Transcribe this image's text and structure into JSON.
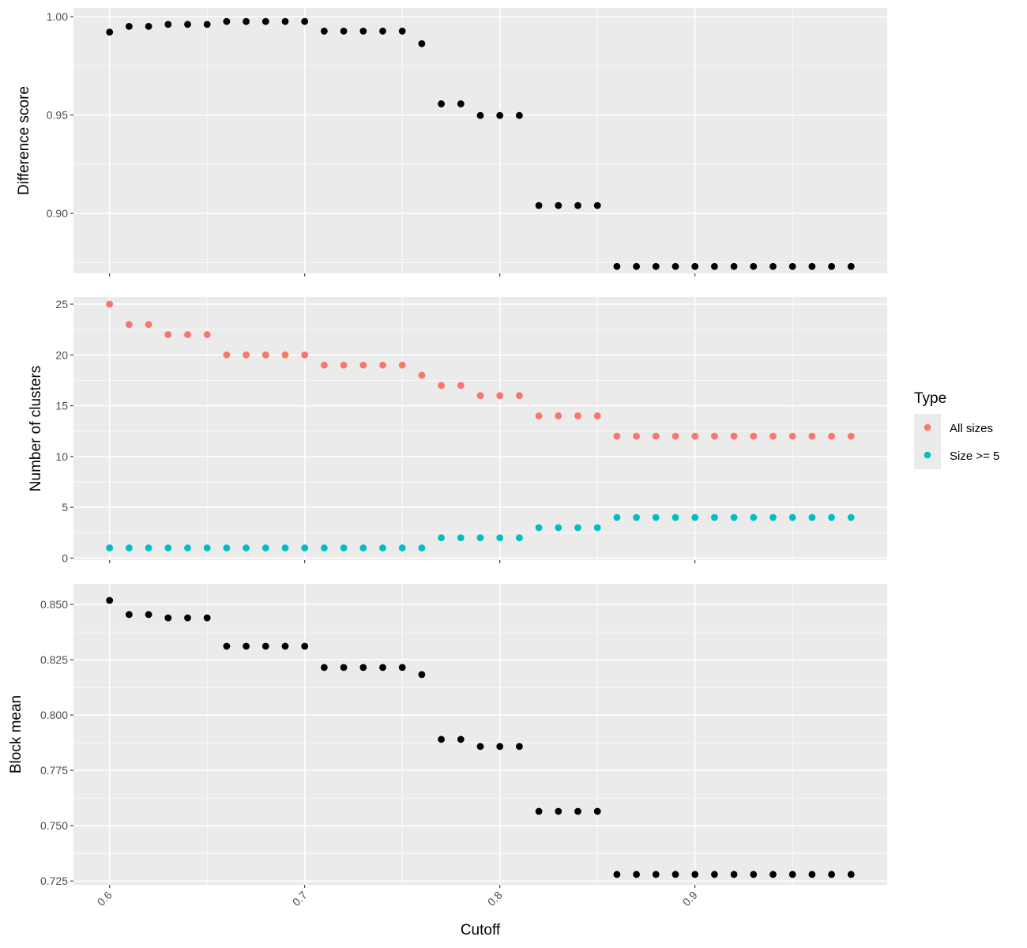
{
  "chart_data": {
    "type": "scatter",
    "xlabel": "Cutoff",
    "x_ticks": [
      0.6,
      0.7,
      0.8,
      0.9
    ],
    "x": [
      0.6,
      0.61,
      0.62,
      0.63,
      0.64,
      0.65,
      0.66,
      0.67,
      0.68,
      0.69,
      0.7,
      0.71,
      0.72,
      0.73,
      0.74,
      0.75,
      0.76,
      0.77,
      0.78,
      0.79,
      0.8,
      0.81,
      0.82,
      0.83,
      0.84,
      0.85,
      0.86,
      0.87,
      0.88,
      0.89,
      0.9,
      0.91,
      0.92,
      0.93,
      0.94,
      0.95,
      0.96,
      0.97,
      0.98
    ],
    "xlim": [
      0.5815,
      0.9985
    ],
    "grid": true,
    "legend": {
      "title": "Type",
      "placement": "right",
      "items": [
        {
          "label": "All sizes",
          "color": "#F8766D"
        },
        {
          "label": "Size >= 5",
          "color": "#00BFC4"
        }
      ]
    },
    "panels": [
      {
        "id": "difference",
        "ylabel": "Difference score",
        "ylim": [
          0.8695,
          1.0045
        ],
        "y_ticks": [
          0.9,
          0.95,
          1.0
        ],
        "y_tick_labels": [
          "0.90",
          "0.95",
          "1.00"
        ],
        "series": [
          {
            "color": "#000000",
            "values": [
              0.9922,
              0.9951,
              0.9951,
              0.9961,
              0.9961,
              0.9961,
              0.9976,
              0.9976,
              0.9976,
              0.9976,
              0.9976,
              0.9927,
              0.9927,
              0.9927,
              0.9927,
              0.9927,
              0.9863,
              0.9557,
              0.9557,
              0.9498,
              0.9498,
              0.9498,
              0.904,
              0.904,
              0.904,
              0.904,
              0.873,
              0.873,
              0.873,
              0.873,
              0.873,
              0.873,
              0.873,
              0.873,
              0.873,
              0.873,
              0.873,
              0.873,
              0.873
            ]
          }
        ]
      },
      {
        "id": "clusters",
        "ylabel": "Number of clusters",
        "ylim": [
          -0.2,
          25.7
        ],
        "y_ticks": [
          0,
          5,
          10,
          15,
          20,
          25
        ],
        "y_tick_labels": [
          "0",
          "5",
          "10",
          "15",
          "20",
          "25"
        ],
        "series": [
          {
            "name": "All sizes",
            "color": "#F8766D",
            "values": [
              25,
              23,
              23,
              22,
              22,
              22,
              20,
              20,
              20,
              20,
              20,
              19,
              19,
              19,
              19,
              19,
              18,
              17,
              17,
              16,
              16,
              16,
              14,
              14,
              14,
              14,
              12,
              12,
              12,
              12,
              12,
              12,
              12,
              12,
              12,
              12,
              12,
              12,
              12
            ]
          },
          {
            "name": "Size >= 5",
            "color": "#00BFC4",
            "values": [
              1,
              1,
              1,
              1,
              1,
              1,
              1,
              1,
              1,
              1,
              1,
              1,
              1,
              1,
              1,
              1,
              1,
              2,
              2,
              2,
              2,
              2,
              3,
              3,
              3,
              3,
              4,
              4,
              4,
              4,
              4,
              4,
              4,
              4,
              4,
              4,
              4,
              4,
              4
            ]
          }
        ]
      },
      {
        "id": "block-mean",
        "ylabel": "Block mean",
        "ylim": [
          0.7233,
          0.8593
        ],
        "y_ticks": [
          0.725,
          0.75,
          0.775,
          0.8,
          0.825,
          0.85
        ],
        "y_tick_labels": [
          "0.725",
          "0.750",
          "0.775",
          "0.800",
          "0.825",
          "0.850"
        ],
        "series": [
          {
            "color": "#000000",
            "values": [
              0.8518,
              0.8454,
              0.8454,
              0.8439,
              0.8439,
              0.8439,
              0.8311,
              0.8311,
              0.8311,
              0.8311,
              0.8311,
              0.8215,
              0.8215,
              0.8215,
              0.8215,
              0.8215,
              0.8183,
              0.789,
              0.789,
              0.7858,
              0.7858,
              0.7858,
              0.7565,
              0.7565,
              0.7565,
              0.7565,
              0.728,
              0.728,
              0.728,
              0.728,
              0.728,
              0.728,
              0.728,
              0.728,
              0.728,
              0.728,
              0.728,
              0.728,
              0.728
            ]
          }
        ]
      }
    ]
  }
}
